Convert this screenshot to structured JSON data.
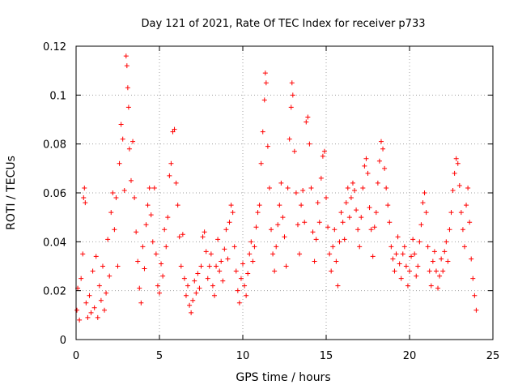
{
  "chart_data": {
    "type": "scatter",
    "title": "Day 121 of 2021, Rate Of TEC Index for receiver p733",
    "xlabel": "GPS time / hours",
    "ylabel": "ROTI / TECUs",
    "xlim": [
      0,
      25
    ],
    "ylim": [
      0,
      0.12
    ],
    "xticks": [
      0,
      5,
      10,
      15,
      20,
      25
    ],
    "xtick_labels": [
      "0",
      "5",
      "10",
      "15",
      "20",
      "25"
    ],
    "yticks": [
      0,
      0.02,
      0.04,
      0.06,
      0.08,
      0.1,
      0.12
    ],
    "ytick_labels": [
      "0",
      "0.02",
      "0.04",
      "0.06",
      "0.08",
      "0.1",
      "0.12"
    ],
    "grid": true,
    "marker": "+",
    "color": "#ff0000",
    "series": [
      {
        "name": "ROTI",
        "points": [
          [
            0.05,
            0.012
          ],
          [
            0.1,
            0.021
          ],
          [
            0.2,
            0.008
          ],
          [
            0.3,
            0.025
          ],
          [
            0.4,
            0.035
          ],
          [
            0.45,
            0.058
          ],
          [
            0.5,
            0.062
          ],
          [
            0.55,
            0.056
          ],
          [
            0.6,
            0.015
          ],
          [
            0.7,
            0.009
          ],
          [
            0.8,
            0.018
          ],
          [
            0.9,
            0.011
          ],
          [
            1.0,
            0.028
          ],
          [
            1.1,
            0.013
          ],
          [
            1.2,
            0.034
          ],
          [
            1.3,
            0.009
          ],
          [
            1.4,
            0.022
          ],
          [
            1.5,
            0.016
          ],
          [
            1.6,
            0.03
          ],
          [
            1.7,
            0.012
          ],
          [
            1.8,
            0.019
          ],
          [
            1.9,
            0.041
          ],
          [
            2.0,
            0.026
          ],
          [
            2.1,
            0.052
          ],
          [
            2.2,
            0.06
          ],
          [
            2.3,
            0.045
          ],
          [
            2.4,
            0.058
          ],
          [
            2.5,
            0.03
          ],
          [
            2.6,
            0.072
          ],
          [
            2.7,
            0.088
          ],
          [
            2.8,
            0.082
          ],
          [
            2.9,
            0.061
          ],
          [
            3.0,
            0.116
          ],
          [
            3.05,
            0.112
          ],
          [
            3.1,
            0.103
          ],
          [
            3.15,
            0.095
          ],
          [
            3.2,
            0.078
          ],
          [
            3.3,
            0.065
          ],
          [
            3.4,
            0.081
          ],
          [
            3.5,
            0.058
          ],
          [
            3.6,
            0.044
          ],
          [
            3.7,
            0.032
          ],
          [
            3.8,
            0.021
          ],
          [
            3.9,
            0.015
          ],
          [
            4.0,
            0.038
          ],
          [
            4.1,
            0.029
          ],
          [
            4.2,
            0.047
          ],
          [
            4.3,
            0.055
          ],
          [
            4.4,
            0.062
          ],
          [
            4.5,
            0.051
          ],
          [
            4.6,
            0.04
          ],
          [
            4.7,
            0.062
          ],
          [
            4.8,
            0.035
          ],
          [
            4.9,
            0.022
          ],
          [
            5.0,
            0.019
          ],
          [
            5.1,
            0.031
          ],
          [
            5.2,
            0.026
          ],
          [
            5.3,
            0.045
          ],
          [
            5.4,
            0.038
          ],
          [
            5.5,
            0.05
          ],
          [
            5.6,
            0.067
          ],
          [
            5.7,
            0.072
          ],
          [
            5.8,
            0.085
          ],
          [
            5.9,
            0.086
          ],
          [
            6.0,
            0.064
          ],
          [
            6.1,
            0.055
          ],
          [
            6.2,
            0.042
          ],
          [
            6.3,
            0.03
          ],
          [
            6.4,
            0.043
          ],
          [
            6.5,
            0.025
          ],
          [
            6.6,
            0.018
          ],
          [
            6.7,
            0.022
          ],
          [
            6.8,
            0.014
          ],
          [
            6.9,
            0.011
          ],
          [
            7.0,
            0.016
          ],
          [
            7.1,
            0.024
          ],
          [
            7.2,
            0.019
          ],
          [
            7.3,
            0.027
          ],
          [
            7.4,
            0.021
          ],
          [
            7.5,
            0.03
          ],
          [
            7.6,
            0.042
          ],
          [
            7.7,
            0.044
          ],
          [
            7.8,
            0.036
          ],
          [
            7.9,
            0.025
          ],
          [
            8.0,
            0.03
          ],
          [
            8.1,
            0.035
          ],
          [
            8.2,
            0.022
          ],
          [
            8.3,
            0.018
          ],
          [
            8.4,
            0.03
          ],
          [
            8.5,
            0.041
          ],
          [
            8.6,
            0.028
          ],
          [
            8.7,
            0.032
          ],
          [
            8.8,
            0.024
          ],
          [
            8.9,
            0.037
          ],
          [
            9.0,
            0.045
          ],
          [
            9.1,
            0.033
          ],
          [
            9.2,
            0.048
          ],
          [
            9.3,
            0.055
          ],
          [
            9.4,
            0.052
          ],
          [
            9.5,
            0.038
          ],
          [
            9.6,
            0.028
          ],
          [
            9.7,
            0.02
          ],
          [
            9.8,
            0.015
          ],
          [
            9.9,
            0.025
          ],
          [
            10.0,
            0.031
          ],
          [
            10.1,
            0.022
          ],
          [
            10.2,
            0.018
          ],
          [
            10.3,
            0.027
          ],
          [
            10.4,
            0.035
          ],
          [
            10.5,
            0.04
          ],
          [
            10.6,
            0.032
          ],
          [
            10.7,
            0.038
          ],
          [
            10.8,
            0.046
          ],
          [
            10.9,
            0.052
          ],
          [
            11.0,
            0.055
          ],
          [
            11.1,
            0.072
          ],
          [
            11.2,
            0.085
          ],
          [
            11.3,
            0.098
          ],
          [
            11.35,
            0.109
          ],
          [
            11.4,
            0.105
          ],
          [
            11.5,
            0.079
          ],
          [
            11.6,
            0.062
          ],
          [
            11.7,
            0.045
          ],
          [
            11.8,
            0.035
          ],
          [
            11.9,
            0.028
          ],
          [
            12.0,
            0.038
          ],
          [
            12.1,
            0.047
          ],
          [
            12.2,
            0.055
          ],
          [
            12.3,
            0.064
          ],
          [
            12.4,
            0.05
          ],
          [
            12.5,
            0.042
          ],
          [
            12.6,
            0.03
          ],
          [
            12.7,
            0.062
          ],
          [
            12.8,
            0.082
          ],
          [
            12.9,
            0.095
          ],
          [
            12.95,
            0.105
          ],
          [
            13.0,
            0.1
          ],
          [
            13.1,
            0.077
          ],
          [
            13.2,
            0.06
          ],
          [
            13.3,
            0.047
          ],
          [
            13.4,
            0.035
          ],
          [
            13.5,
            0.055
          ],
          [
            13.6,
            0.061
          ],
          [
            13.7,
            0.048
          ],
          [
            13.8,
            0.089
          ],
          [
            13.9,
            0.091
          ],
          [
            14.0,
            0.08
          ],
          [
            14.1,
            0.062
          ],
          [
            14.2,
            0.044
          ],
          [
            14.3,
            0.032
          ],
          [
            14.4,
            0.041
          ],
          [
            14.5,
            0.056
          ],
          [
            14.6,
            0.048
          ],
          [
            14.7,
            0.066
          ],
          [
            14.8,
            0.075
          ],
          [
            14.9,
            0.077
          ],
          [
            15.0,
            0.058
          ],
          [
            15.1,
            0.046
          ],
          [
            15.2,
            0.035
          ],
          [
            15.3,
            0.028
          ],
          [
            15.4,
            0.038
          ],
          [
            15.5,
            0.045
          ],
          [
            15.6,
            0.032
          ],
          [
            15.7,
            0.022
          ],
          [
            15.8,
            0.04
          ],
          [
            15.9,
            0.052
          ],
          [
            16.0,
            0.048
          ],
          [
            16.1,
            0.041
          ],
          [
            16.2,
            0.056
          ],
          [
            16.3,
            0.062
          ],
          [
            16.4,
            0.05
          ],
          [
            16.5,
            0.058
          ],
          [
            16.6,
            0.064
          ],
          [
            16.7,
            0.061
          ],
          [
            16.8,
            0.053
          ],
          [
            16.9,
            0.045
          ],
          [
            17.0,
            0.038
          ],
          [
            17.1,
            0.05
          ],
          [
            17.2,
            0.062
          ],
          [
            17.3,
            0.071
          ],
          [
            17.4,
            0.074
          ],
          [
            17.5,
            0.068
          ],
          [
            17.6,
            0.054
          ],
          [
            17.7,
            0.045
          ],
          [
            17.8,
            0.034
          ],
          [
            17.9,
            0.046
          ],
          [
            18.0,
            0.052
          ],
          [
            18.1,
            0.064
          ],
          [
            18.2,
            0.073
          ],
          [
            18.3,
            0.081
          ],
          [
            18.4,
            0.078
          ],
          [
            18.5,
            0.07
          ],
          [
            18.6,
            0.062
          ],
          [
            18.7,
            0.055
          ],
          [
            18.8,
            0.048
          ],
          [
            18.9,
            0.038
          ],
          [
            19.0,
            0.033
          ],
          [
            19.1,
            0.028
          ],
          [
            19.2,
            0.035
          ],
          [
            19.3,
            0.042
          ],
          [
            19.4,
            0.031
          ],
          [
            19.5,
            0.025
          ],
          [
            19.6,
            0.035
          ],
          [
            19.7,
            0.038
          ],
          [
            19.8,
            0.03
          ],
          [
            19.9,
            0.022
          ],
          [
            20.0,
            0.028
          ],
          [
            20.1,
            0.034
          ],
          [
            20.2,
            0.041
          ],
          [
            20.3,
            0.035
          ],
          [
            20.4,
            0.026
          ],
          [
            20.5,
            0.03
          ],
          [
            20.6,
            0.04
          ],
          [
            20.7,
            0.047
          ],
          [
            20.8,
            0.056
          ],
          [
            20.9,
            0.06
          ],
          [
            21.0,
            0.052
          ],
          [
            21.1,
            0.038
          ],
          [
            21.2,
            0.028
          ],
          [
            21.3,
            0.022
          ],
          [
            21.4,
            0.032
          ],
          [
            21.5,
            0.036
          ],
          [
            21.6,
            0.028
          ],
          [
            21.7,
            0.021
          ],
          [
            21.8,
            0.026
          ],
          [
            21.9,
            0.033
          ],
          [
            22.0,
            0.028
          ],
          [
            22.1,
            0.036
          ],
          [
            22.2,
            0.04
          ],
          [
            22.3,
            0.032
          ],
          [
            22.4,
            0.045
          ],
          [
            22.5,
            0.052
          ],
          [
            22.6,
            0.061
          ],
          [
            22.7,
            0.068
          ],
          [
            22.8,
            0.074
          ],
          [
            22.9,
            0.072
          ],
          [
            23.0,
            0.063
          ],
          [
            23.1,
            0.052
          ],
          [
            23.2,
            0.045
          ],
          [
            23.3,
            0.038
          ],
          [
            23.4,
            0.055
          ],
          [
            23.5,
            0.062
          ],
          [
            23.6,
            0.048
          ],
          [
            23.7,
            0.033
          ],
          [
            23.8,
            0.025
          ],
          [
            23.9,
            0.018
          ],
          [
            24.0,
            0.012
          ]
        ]
      }
    ]
  }
}
